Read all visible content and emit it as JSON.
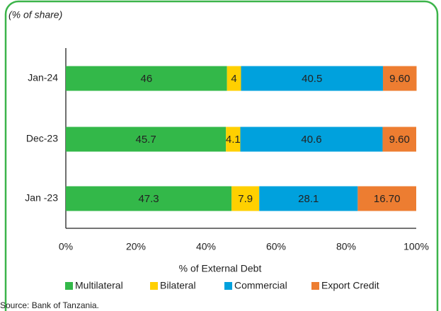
{
  "chart_data": {
    "type": "stacked_barh",
    "title": "(% of share)",
    "categories": [
      "Jan-24",
      "Dec-23",
      "Jan -23"
    ],
    "series": [
      {
        "name": "Multilateral",
        "color": "#33b849",
        "values": [
          46,
          45.7,
          47.3
        ]
      },
      {
        "name": "Bilateral",
        "color": "#ffd000",
        "values": [
          4,
          4.1,
          7.9
        ]
      },
      {
        "name": "Commercial",
        "color": "#00a1dd",
        "values": [
          40.5,
          40.6,
          28.1
        ]
      },
      {
        "name": "Export Credit",
        "color": "#ed7d31",
        "values": [
          9.6,
          9.6,
          16.7
        ],
        "value_labels": [
          "9.60",
          "9.60",
          "16.70"
        ]
      }
    ],
    "xlim": [
      0,
      100
    ],
    "xticks": [
      {
        "value": 0,
        "label": "0%"
      },
      {
        "value": 20,
        "label": "20%"
      },
      {
        "value": 40,
        "label": "40%"
      },
      {
        "value": 60,
        "label": "60%"
      },
      {
        "value": 80,
        "label": "80%"
      },
      {
        "value": 100,
        "label": "100%"
      }
    ],
    "xlabel": "% of External Debt",
    "legend": "bottom",
    "source": "Source: Bank of Tanzania."
  }
}
